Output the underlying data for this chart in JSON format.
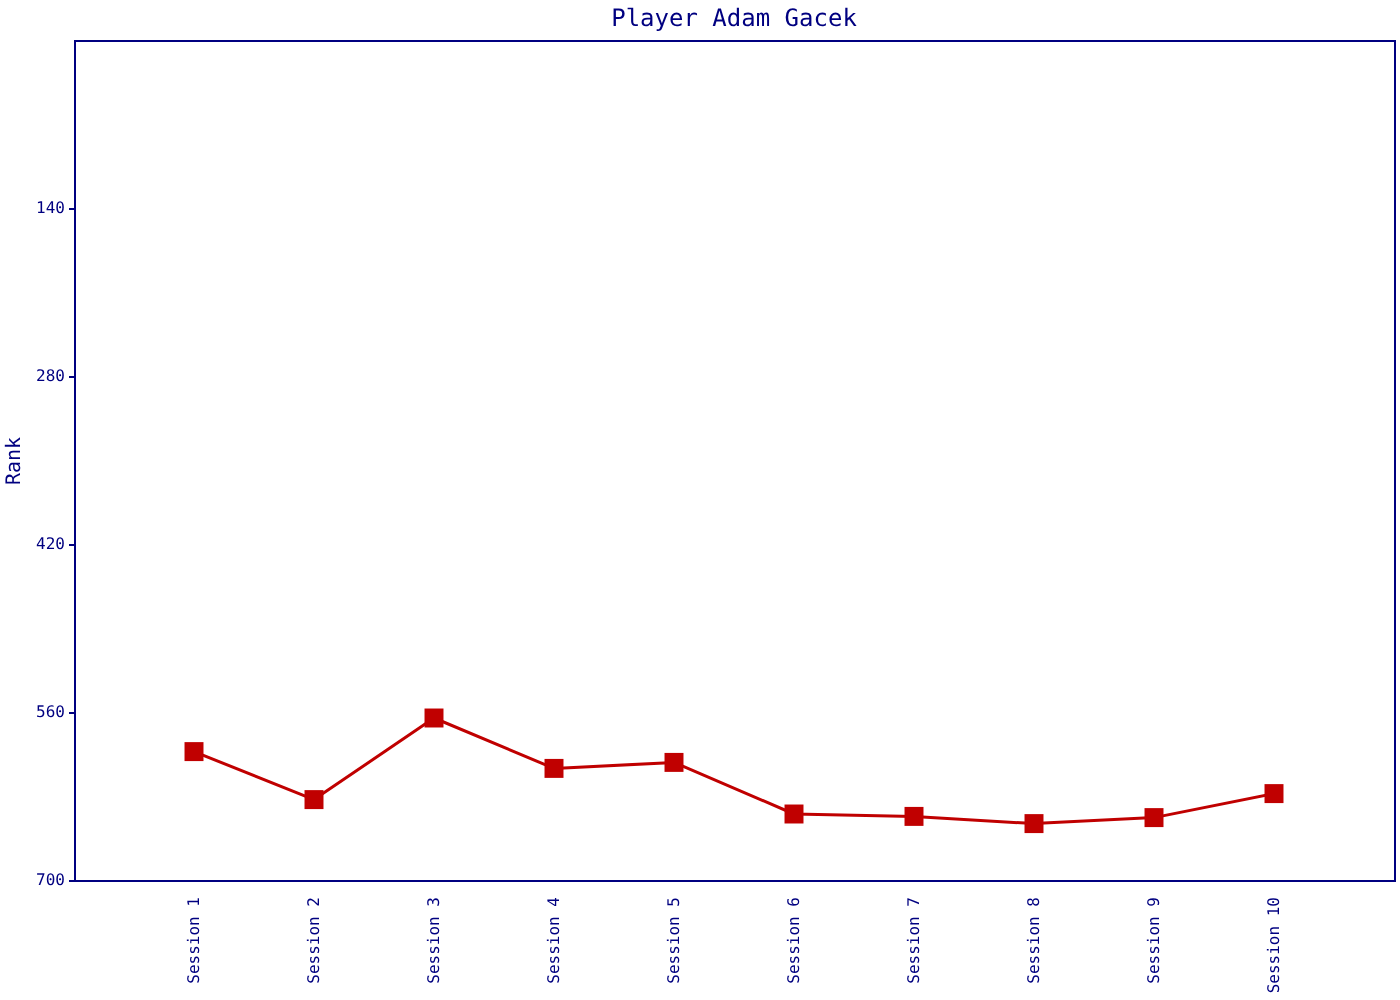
{
  "chart_data": {
    "type": "line",
    "title": "Player Adam Gacek",
    "ylabel": "Rank",
    "categories": [
      "Session 1",
      "Session 2",
      "Session 3",
      "Session 4",
      "Session 5",
      "Session 6",
      "Session 7",
      "Session 8",
      "Session 9",
      "Session 10"
    ],
    "series": [
      {
        "color": "#c00000",
        "values": [
          593,
          633,
          565,
          607,
          602,
          645,
          647,
          653,
          648,
          628
        ]
      }
    ],
    "ylim": [
      700,
      0
    ],
    "yticks": [
      140,
      280,
      420,
      560,
      700
    ],
    "marker": "square",
    "line_style": "solid",
    "grid": false
  }
}
